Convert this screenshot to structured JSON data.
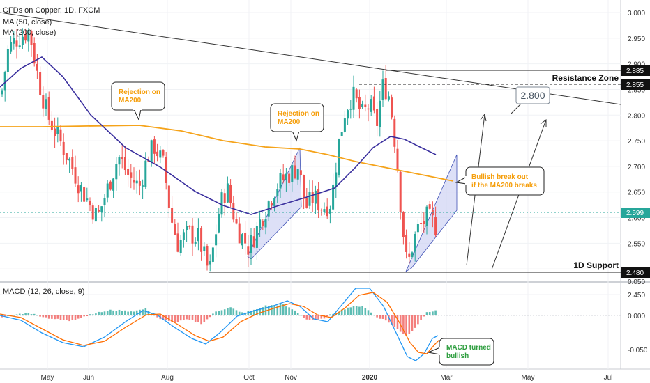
{
  "header": {
    "title": "CFDs on Copper, 1D, FXCM",
    "ma50": "MA (50, close)",
    "ma200": "MA (200, close)",
    "macd": "MACD (12, 26, close, 9)"
  },
  "colors": {
    "up": "#26a69a",
    "down": "#ef5350",
    "ma50": "#3a2f9e",
    "ma200": "#f5a31a",
    "macd": "#2196f3",
    "signal": "#ff6d00",
    "channel": "#c7ccf2",
    "last_price": "#26a69a",
    "anno_orange": "#f59e0b",
    "anno_green": "#2e9e3f"
  },
  "price_axis": [
    "3.000",
    "2.950",
    "2.900",
    "2.850",
    "2.800",
    "2.750",
    "2.700",
    "2.650",
    "2.600",
    "2.550",
    "2.500",
    "2.450"
  ],
  "macd_axis": [
    "0.050",
    "0.000",
    "-0.050"
  ],
  "time_axis": [
    "May",
    "Jun",
    "Aug",
    "Oct",
    "Nov",
    "2020",
    "Mar",
    "May",
    "Jul"
  ],
  "price_tags": {
    "res1": "2.885",
    "res2": "2.855",
    "last": "2.599",
    "support": "2.480"
  },
  "labels": {
    "resistance": "Resistance Zone",
    "support": "1D Support",
    "target": "2.800"
  },
  "annotations": {
    "rej1": [
      "Rejection on",
      "MA200"
    ],
    "rej2": [
      "Rejection on",
      "MA200"
    ],
    "bullish": [
      "Bullish break out",
      "if the MA200 breaks"
    ],
    "macd_bull": [
      "MACD turned",
      "bullish"
    ]
  },
  "chart_data": {
    "type": "candlestick",
    "symbol": "CFDs on Copper",
    "interval": "1D",
    "ylim": [
      2.45,
      3.0
    ],
    "ma200_approx": [
      {
        "x": "Apr",
        "y": 2.78
      },
      {
        "x": "Aug",
        "y": 2.775
      },
      {
        "x": "Oct",
        "y": 2.74
      },
      {
        "x": "Nov",
        "y": 2.72
      },
      {
        "x": "Jan",
        "y": 2.69
      },
      {
        "x": "Feb",
        "y": 2.665
      }
    ],
    "ma50_approx": [
      {
        "x": "Apr",
        "y": 2.84
      },
      {
        "x": "May",
        "y": 2.91
      },
      {
        "x": "Jul",
        "y": 2.72
      },
      {
        "x": "Oct",
        "y": 2.58
      },
      {
        "x": "Nov",
        "y": 2.62
      },
      {
        "x": "Jan",
        "y": 2.75
      },
      {
        "x": "Feb",
        "y": 2.72
      }
    ],
    "levels": {
      "resistance_high": 2.885,
      "resistance_low": 2.855,
      "support": 2.48,
      "last": 2.599,
      "target": 2.8
    },
    "series": [
      {
        "name": "MA (50, close)"
      },
      {
        "name": "MA (200, close)"
      }
    ],
    "macd_ylim": [
      -0.07,
      0.06
    ]
  }
}
